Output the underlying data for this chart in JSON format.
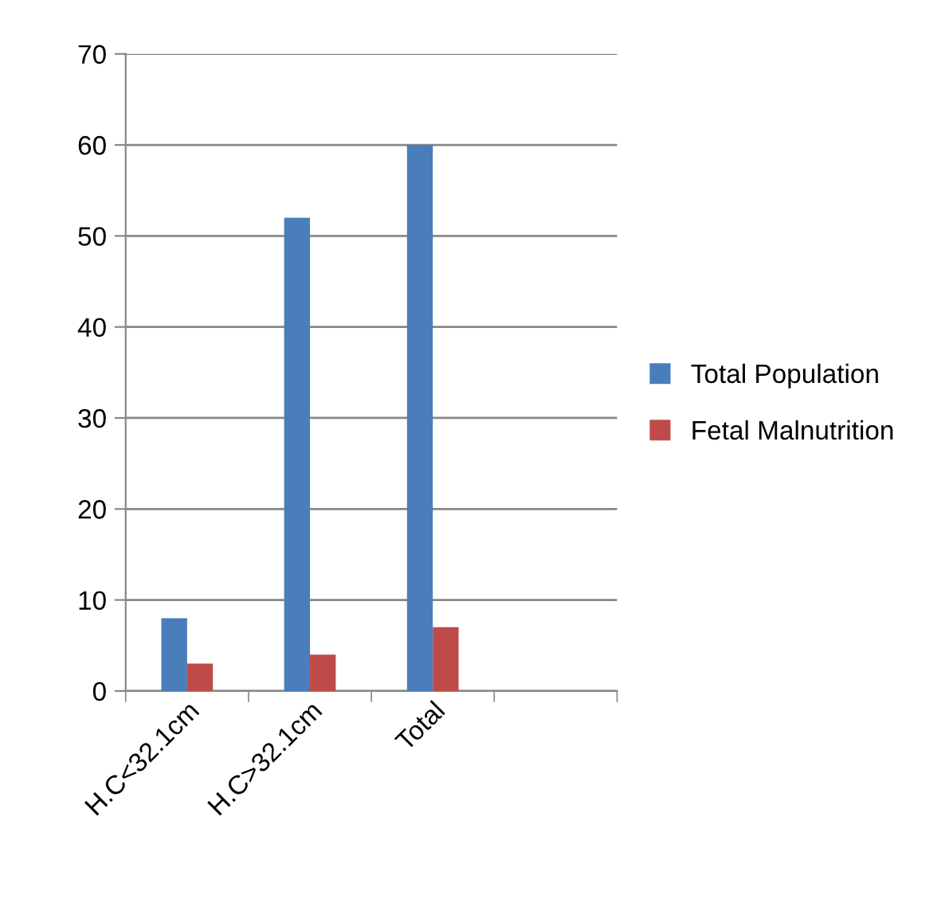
{
  "chart_data": {
    "type": "bar",
    "categories": [
      "H.C<32.1cm",
      "H.C>32.1cm",
      "Total",
      null
    ],
    "series": [
      {
        "name": "Total Population",
        "color": "#4a7ebb",
        "values": [
          8,
          52,
          60,
          null
        ]
      },
      {
        "name": "Fetal Malnutrition",
        "color": "#be4b48",
        "values": [
          3,
          4,
          7,
          null
        ]
      }
    ],
    "ylim": [
      0,
      70
    ],
    "yticks": [
      0,
      10,
      20,
      30,
      40,
      50,
      60,
      70
    ],
    "grid": "y",
    "legend": "right"
  }
}
